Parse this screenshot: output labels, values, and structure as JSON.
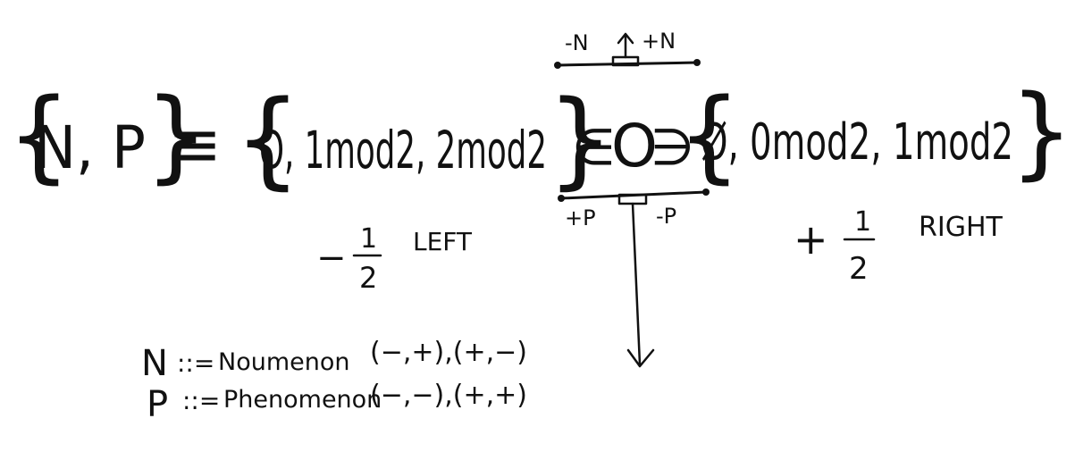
{
  "equation": {
    "lhs": "N, P",
    "relation": "≡",
    "set_left": "O, 1mod2, 2mod2",
    "element_of": "∈",
    "center": "O",
    "contains": "∋",
    "set_right": "Ø, 0mod2, 1mod2"
  },
  "top_bar": {
    "minus_label": "-N",
    "plus_label": "+N"
  },
  "bottom_bar": {
    "plus_label": "+P",
    "minus_label": "-P"
  },
  "left_side": {
    "sign": "−",
    "numerator": "1",
    "denominator": "2",
    "label": "LEFT"
  },
  "right_side": {
    "sign": "+",
    "numerator": "1",
    "denominator": "2",
    "label": "RIGHT"
  },
  "definitions": {
    "n_symbol": "N",
    "n_assign": "::=",
    "n_text": "Noumenon",
    "n_pairs": "(−,+),(+,−)",
    "p_symbol": "P",
    "p_assign": "::=",
    "p_text": "Phenomenon",
    "p_pairs": "(−,−),(+,+)"
  }
}
